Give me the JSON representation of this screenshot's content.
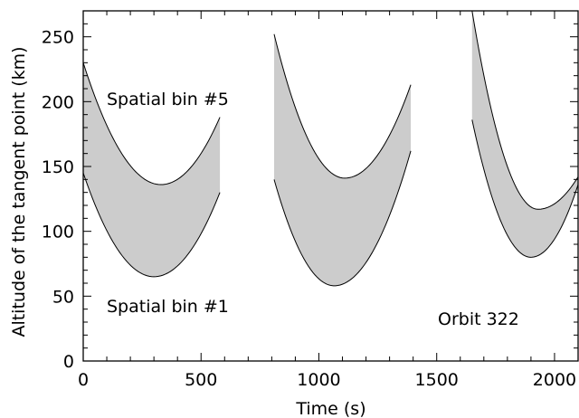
{
  "chart_data": {
    "type": "area",
    "xlabel": "Time (s)",
    "ylabel": "Altitude of the tangent point (km)",
    "xlim": [
      0,
      2100
    ],
    "ylim": [
      0,
      270
    ],
    "x_ticks": [
      0,
      500,
      1000,
      1500,
      2000
    ],
    "y_ticks": [
      0,
      50,
      100,
      150,
      200,
      250
    ],
    "grid": false,
    "fill_color": "#cccccc",
    "line_color": "#000000",
    "annotations": [
      "Spatial bin #5",
      "Spatial bin #1",
      "Orbit 322"
    ],
    "bands": [
      {
        "upper": [
          [
            0,
            230
          ],
          [
            330,
            136
          ],
          [
            580,
            188
          ]
        ],
        "lower": [
          [
            0,
            145
          ],
          [
            300,
            65
          ],
          [
            580,
            130
          ]
        ]
      },
      {
        "upper": [
          [
            810,
            252
          ],
          [
            1110,
            141
          ],
          [
            1390,
            213
          ]
        ],
        "lower": [
          [
            810,
            140
          ],
          [
            1065,
            58
          ],
          [
            1390,
            162
          ]
        ]
      },
      {
        "upper": [
          [
            1650,
            270
          ],
          [
            1930,
            117
          ],
          [
            2100,
            142
          ]
        ],
        "lower": [
          [
            1650,
            186
          ],
          [
            1900,
            80
          ],
          [
            2100,
            136
          ]
        ]
      }
    ]
  }
}
